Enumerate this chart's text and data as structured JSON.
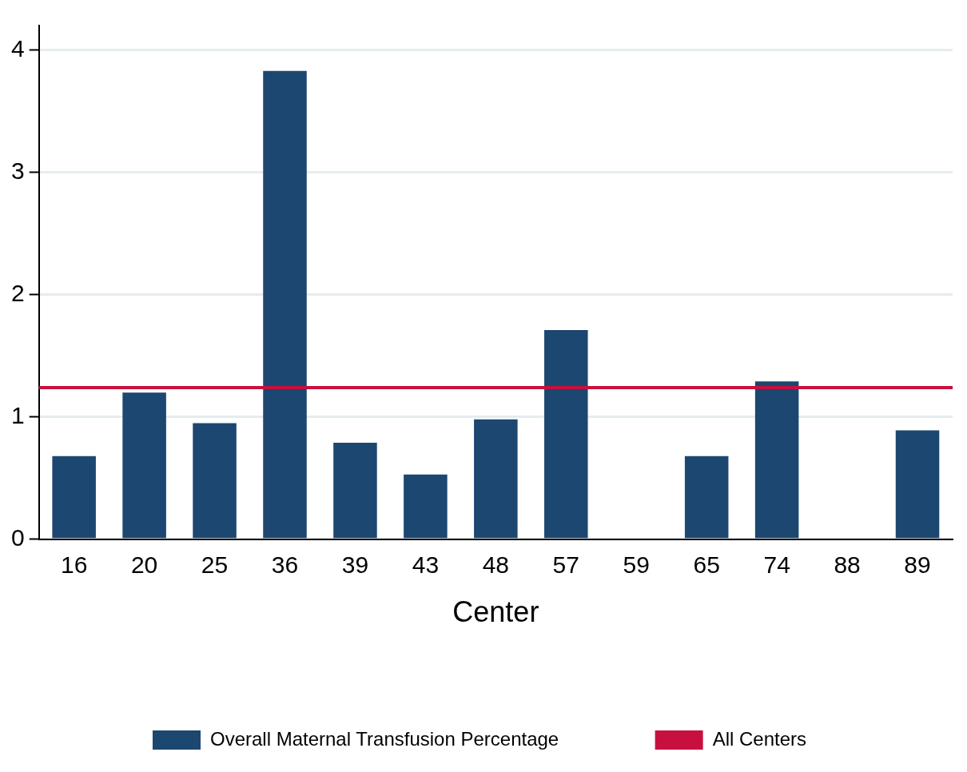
{
  "chart_data": {
    "type": "bar",
    "xlabel": "Center",
    "categories": [
      "16",
      "20",
      "25",
      "36",
      "39",
      "43",
      "48",
      "57",
      "59",
      "65",
      "74",
      "88",
      "89"
    ],
    "series": [
      {
        "name": "Overall Maternal Transfusion Percentage",
        "color": "#1c4770",
        "values": [
          0.68,
          1.2,
          0.95,
          3.83,
          0.79,
          0.53,
          0.98,
          1.71,
          0,
          0.68,
          1.29,
          0,
          0.89
        ]
      }
    ],
    "ref_lines": [
      {
        "axis": "y",
        "value": 1.24,
        "label": "All Centers",
        "color": "#c8103e"
      }
    ],
    "ylim": [
      0,
      4.2
    ],
    "yticks": [
      0,
      1,
      2,
      3,
      4
    ],
    "grid": "y",
    "legend": "bottom"
  }
}
